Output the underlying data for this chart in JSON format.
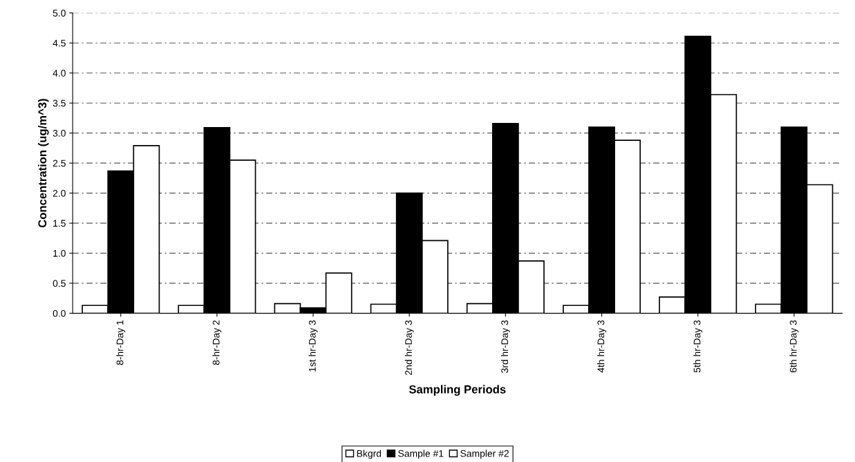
{
  "chart_data": {
    "type": "bar",
    "categories": [
      "8-hr-Day 1",
      "8-hr-Day 2",
      "1st hr-Day 3",
      "2nd hr-Day 3",
      "3rd hr-Day 3",
      "4th hr-Day 3",
      "5th hr-Day 3",
      "6th hr-Day 3"
    ],
    "series": [
      {
        "name": "Bkgrd",
        "color": "#ffffff",
        "values": [
          0.13,
          0.13,
          0.16,
          0.15,
          0.16,
          0.13,
          0.27,
          0.15
        ]
      },
      {
        "name": "Sample #1",
        "color": "#000000",
        "values": [
          2.37,
          3.09,
          0.09,
          2.0,
          3.16,
          3.1,
          4.61,
          3.1
        ]
      },
      {
        "name": "Sampler #2",
        "color": "#ffffff",
        "values": [
          2.79,
          2.55,
          0.67,
          1.21,
          0.87,
          2.88,
          3.64,
          2.14
        ]
      }
    ],
    "xlabel": "Sampling Periods",
    "ylabel": "Concentration (ug/m^3)",
    "ylim": [
      0,
      5
    ],
    "yticks": [
      {
        "value": 0,
        "label": "0.0"
      },
      {
        "value": 0.5,
        "label": "0.5"
      },
      {
        "value": 1,
        "label": "1.0"
      },
      {
        "value": 1.5,
        "label": "1.5"
      },
      {
        "value": 2,
        "label": "2.0"
      },
      {
        "value": 2.5,
        "label": "2.5"
      },
      {
        "value": 3,
        "label": "3.0"
      },
      {
        "value": 3.5,
        "label": "3.5"
      },
      {
        "value": 4,
        "label": "4.0"
      },
      {
        "value": 4.5,
        "label": "4.5"
      },
      {
        "value": 5,
        "label": "5.0"
      }
    ],
    "grid": "y",
    "legend": "bottom"
  }
}
